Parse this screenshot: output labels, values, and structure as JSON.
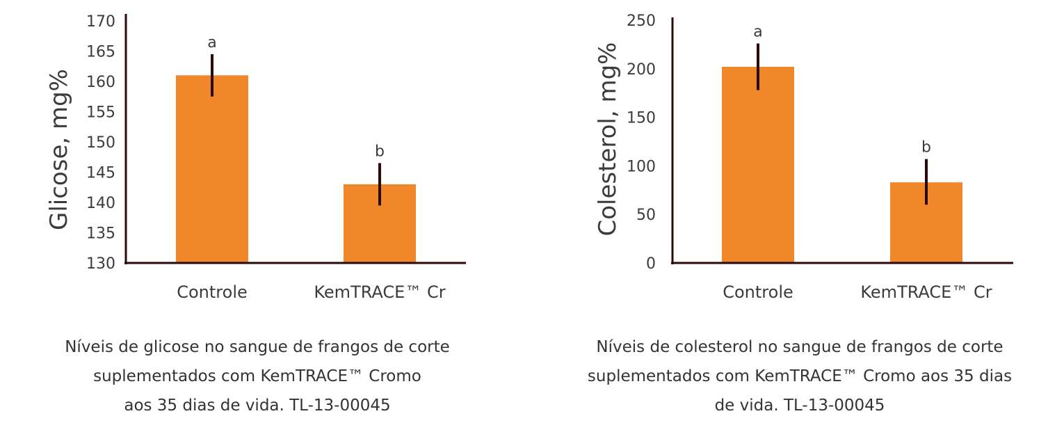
{
  "colors": {
    "bar": "#F0872B",
    "axis": "#2a0a0a",
    "error": "#2a0a0a",
    "text": "#3b3b3b"
  },
  "chart_data": [
    {
      "type": "bar",
      "categories": [
        "Controle",
        "KemTRACE™ Cr"
      ],
      "values": [
        161,
        143
      ],
      "errors_low": [
        157.5,
        139.5
      ],
      "errors_high": [
        164.5,
        146.5
      ],
      "significance": [
        "a",
        "b"
      ],
      "xlabel": "",
      "ylabel": "Glicose, mg%",
      "ylim": [
        130,
        170
      ],
      "yticks": [
        "130",
        "135",
        "140",
        "145",
        "150",
        "155",
        "160",
        "165",
        "170"
      ],
      "caption": [
        "Níveis de glicose no sangue de frangos de corte",
        "suplementados com KemTRACE™ Cromo",
        "aos 35 dias de vida. TL-13-00045"
      ]
    },
    {
      "type": "bar",
      "categories": [
        "Controle",
        "KemTRACE™ Cr"
      ],
      "values": [
        202,
        83
      ],
      "errors_low": [
        178,
        60
      ],
      "errors_high": [
        226,
        107
      ],
      "significance": [
        "a",
        "b"
      ],
      "xlabel": "",
      "ylabel": "Colesterol, mg%",
      "ylim": [
        0,
        265
      ],
      "yticks": [
        "0",
        "50",
        "100",
        "150",
        "200",
        "250"
      ],
      "caption": [
        "Níveis de colesterol no sangue de frangos de corte",
        "suplementados com KemTRACE™ Cromo aos 35 dias",
        "de vida. TL-13-00045"
      ]
    }
  ]
}
